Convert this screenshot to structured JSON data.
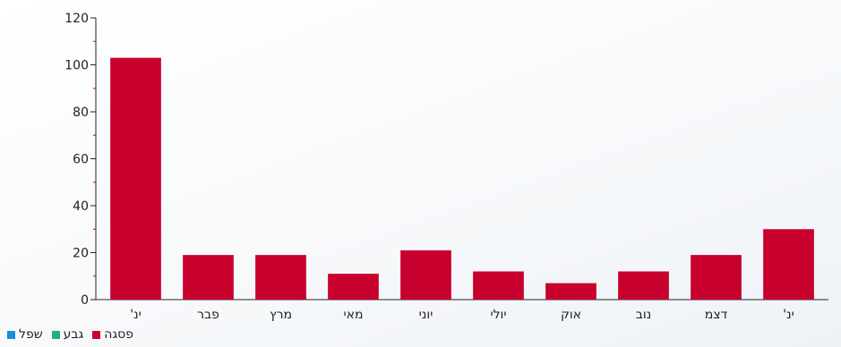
{
  "chart_data": {
    "type": "bar",
    "categories": [
      "ינ'",
      "פבר",
      "מרץ",
      "מאי",
      "יוני",
      "יולי",
      "אוק",
      "נוב",
      "דצמ",
      "ינ'"
    ],
    "series": [
      {
        "name": "פסגה",
        "values": [
          103,
          19,
          19,
          11,
          21,
          12,
          7,
          12,
          19,
          30
        ],
        "color": "#c8002e"
      }
    ],
    "legend": [
      {
        "label": "פסגה",
        "color": "#c8002e"
      },
      {
        "label": "גבע",
        "color": "#1fb27a"
      },
      {
        "label": "שפל",
        "color": "#1a8fd6"
      }
    ],
    "ylim": [
      0,
      120
    ],
    "yticks": [
      0,
      20,
      40,
      60,
      80,
      100,
      120
    ],
    "grid": false,
    "legend_position": "bottom-left",
    "colors": {
      "axis": "#222222",
      "minor_tick": "#c8002e"
    }
  }
}
